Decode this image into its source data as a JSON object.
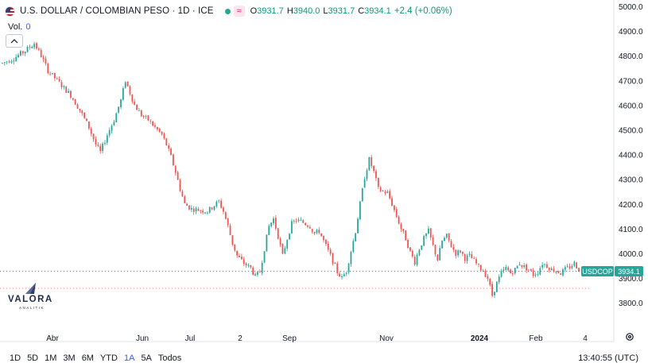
{
  "legend": {
    "title": "U.S. DOLLAR / COLOMBIAN PESO · 1D · ICE",
    "badge": "≈",
    "o_label": "O",
    "o_value": "3931.7",
    "h_label": "H",
    "h_value": "3940.0",
    "l_label": "L",
    "l_value": "3931.7",
    "c_label": "C",
    "c_value": "3934.1",
    "change": "+2.4 (+0.06%)"
  },
  "volume": {
    "label": "Vol.",
    "value": "0"
  },
  "logo": {
    "word": "VALORA",
    "sub": "ANALITIK"
  },
  "price_tag": {
    "symbol": "USDCOP",
    "value": "3934.1"
  },
  "ranges": [
    "1D",
    "5D",
    "1M",
    "3M",
    "6M",
    "YTD",
    "1A",
    "5A",
    "Todos"
  ],
  "active_range": "1A",
  "clock": "13:40:55 (UTC)",
  "colors": {
    "up": "#26a69a",
    "down": "#ef5350",
    "accent": "#2962ff",
    "tag": "#26a69a"
  },
  "chart_data": {
    "type": "candlestick",
    "title": "U.S. DOLLAR / COLOMBIAN PESO · 1D · ICE",
    "x_tick_labels": [
      "Abr",
      "Jun",
      "Jul",
      "2",
      "Sep",
      "Nov",
      "2024",
      "Feb",
      "4"
    ],
    "y_tick_labels": [
      "5000.0",
      "4900.0",
      "4800.0",
      "4700.0",
      "4600.0",
      "4500.0",
      "4400.0",
      "4300.0",
      "4200.0",
      "4100.0",
      "4000.0",
      "3900.0",
      "3800.0"
    ],
    "ylim": [
      3800,
      5000
    ],
    "last_price": 3934.1,
    "price_path": [
      [
        0,
        4770
      ],
      [
        5,
        4790
      ],
      [
        10,
        4820
      ],
      [
        14,
        4850
      ],
      [
        17,
        4800
      ],
      [
        20,
        4740
      ],
      [
        25,
        4690
      ],
      [
        30,
        4640
      ],
      [
        34,
        4580
      ],
      [
        38,
        4510
      ],
      [
        41,
        4440
      ],
      [
        43,
        4410
      ],
      [
        46,
        4480
      ],
      [
        49,
        4540
      ],
      [
        52,
        4620
      ],
      [
        54,
        4700
      ],
      [
        56,
        4650
      ],
      [
        58,
        4600
      ],
      [
        61,
        4560
      ],
      [
        64,
        4540
      ],
      [
        67,
        4510
      ],
      [
        70,
        4480
      ],
      [
        72,
        4440
      ],
      [
        74,
        4390
      ],
      [
        76,
        4330
      ],
      [
        78,
        4260
      ],
      [
        80,
        4200
      ],
      [
        83,
        4180
      ],
      [
        87,
        4175
      ],
      [
        90,
        4170
      ],
      [
        93,
        4195
      ],
      [
        95,
        4210
      ],
      [
        97,
        4170
      ],
      [
        99,
        4110
      ],
      [
        101,
        4040
      ],
      [
        103,
        3990
      ],
      [
        106,
        3960
      ],
      [
        109,
        3940
      ],
      [
        111,
        3905
      ],
      [
        113,
        3925
      ],
      [
        115,
        4020
      ],
      [
        117,
        4110
      ],
      [
        119,
        4140
      ],
      [
        121,
        4070
      ],
      [
        123,
        3990
      ],
      [
        125,
        4060
      ],
      [
        127,
        4120
      ],
      [
        129,
        4135
      ],
      [
        132,
        4125
      ],
      [
        135,
        4110
      ],
      [
        137,
        4080
      ],
      [
        139,
        4090
      ],
      [
        141,
        4050
      ],
      [
        143,
        4010
      ],
      [
        145,
        3970
      ],
      [
        147,
        3925
      ],
      [
        149,
        3900
      ],
      [
        151,
        3930
      ],
      [
        153,
        4010
      ],
      [
        155,
        4090
      ],
      [
        157,
        4200
      ],
      [
        159,
        4310
      ],
      [
        161,
        4380
      ],
      [
        163,
        4330
      ],
      [
        165,
        4260
      ],
      [
        167,
        4250
      ],
      [
        169,
        4245
      ],
      [
        171,
        4200
      ],
      [
        173,
        4150
      ],
      [
        175,
        4100
      ],
      [
        177,
        4060
      ],
      [
        179,
        4005
      ],
      [
        181,
        3965
      ],
      [
        183,
        4020
      ],
      [
        185,
        4060
      ],
      [
        187,
        4090
      ],
      [
        189,
        4030
      ],
      [
        191,
        3975
      ],
      [
        193,
        4050
      ],
      [
        195,
        4070
      ],
      [
        197,
        4030
      ],
      [
        199,
        4000
      ],
      [
        201,
        4010
      ],
      [
        203,
        3980
      ],
      [
        205,
        3990
      ],
      [
        207,
        3970
      ],
      [
        209,
        3945
      ],
      [
        211,
        3930
      ],
      [
        213,
        3900
      ],
      [
        215,
        3830
      ],
      [
        217,
        3880
      ],
      [
        219,
        3920
      ],
      [
        221,
        3940
      ],
      [
        223,
        3920
      ],
      [
        225,
        3935
      ],
      [
        227,
        3960
      ],
      [
        229,
        3945
      ],
      [
        231,
        3935
      ],
      [
        233,
        3915
      ],
      [
        235,
        3925
      ],
      [
        237,
        3960
      ],
      [
        239,
        3950
      ],
      [
        241,
        3935
      ],
      [
        243,
        3930
      ],
      [
        245,
        3920
      ],
      [
        247,
        3935
      ],
      [
        249,
        3945
      ],
      [
        251,
        3960
      ],
      [
        253,
        3935
      ]
    ]
  }
}
